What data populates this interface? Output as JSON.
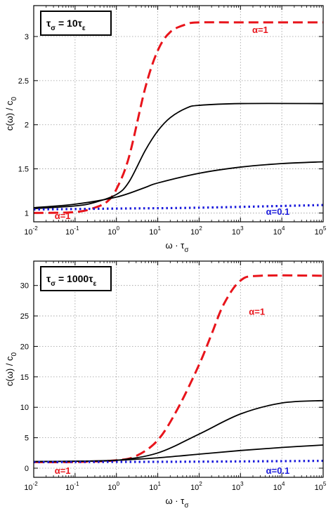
{
  "chart_data": [
    {
      "type": "line",
      "xscale": "log",
      "xlim": [
        0.01,
        100000
      ],
      "ylim": [
        0.9,
        3.35
      ],
      "x_ticks": [
        0.01,
        0.1,
        1,
        10,
        100,
        1000,
        10000,
        100000
      ],
      "x_tick_labels": [
        {
          "base": "10",
          "exp": "-2"
        },
        {
          "base": "10",
          "exp": "-1"
        },
        {
          "base": "10",
          "exp": "0"
        },
        {
          "base": "10",
          "exp": "1"
        },
        {
          "base": "10",
          "exp": "2"
        },
        {
          "base": "10",
          "exp": "3"
        },
        {
          "base": "10",
          "exp": "4"
        },
        {
          "base": "10",
          "exp": "5"
        }
      ],
      "y_ticks": [
        1,
        1.5,
        2,
        2.5,
        3
      ],
      "y_tick_labels": [
        "1",
        "1.5",
        "2",
        "2.5",
        "3"
      ],
      "xlabel": "ω · τσ",
      "ylabel": "c(ω) / c0",
      "grid": true,
      "box_label": {
        "prefix": "τ",
        "prefix_sub": "σ",
        "middle": " = 10τ",
        "suffix_sub": "ε"
      },
      "series": [
        {
          "style": "red-dashed",
          "color": "#e8141b",
          "x": [
            0.01,
            0.1,
            0.3,
            0.6,
            1,
            2,
            5,
            10,
            20,
            50,
            100,
            1000,
            100000
          ],
          "y": [
            1.0,
            1.01,
            1.06,
            1.13,
            1.27,
            1.63,
            2.42,
            2.84,
            3.05,
            3.14,
            3.16,
            3.16,
            3.16
          ]
        },
        {
          "style": "black",
          "color": "#000000",
          "x": [
            0.01,
            0.1,
            0.3,
            1,
            2,
            5,
            10,
            20,
            50,
            100,
            1000,
            100000
          ],
          "y": [
            1.05,
            1.08,
            1.12,
            1.21,
            1.35,
            1.71,
            1.93,
            2.08,
            2.19,
            2.22,
            2.24,
            2.24
          ]
        },
        {
          "style": "black",
          "color": "#000000",
          "x": [
            0.01,
            0.1,
            1,
            5,
            10,
            100,
            1000,
            10000,
            100000
          ],
          "y": [
            1.06,
            1.1,
            1.18,
            1.29,
            1.34,
            1.45,
            1.52,
            1.56,
            1.58
          ]
        },
        {
          "style": "blue-dotted",
          "color": "#1a1adc",
          "x": [
            0.01,
            1,
            100,
            100000
          ],
          "y": [
            1.04,
            1.05,
            1.06,
            1.09
          ]
        }
      ],
      "annotations": [
        {
          "text": "α=1",
          "color": "#e8141b",
          "x": 3000,
          "y": 3.04
        },
        {
          "text": "α=1",
          "color": "#e8141b",
          "x": 0.05,
          "y": 0.93
        },
        {
          "text": "α=0.1",
          "color": "#1a1adc",
          "x": 8000,
          "y": 0.98
        }
      ]
    },
    {
      "type": "line",
      "xscale": "log",
      "xlim": [
        0.01,
        100000
      ],
      "ylim": [
        -1.5,
        34
      ],
      "x_ticks": [
        0.01,
        0.1,
        1,
        10,
        100,
        1000,
        10000,
        100000
      ],
      "x_tick_labels": [
        {
          "base": "10",
          "exp": "-2"
        },
        {
          "base": "10",
          "exp": "-1"
        },
        {
          "base": "10",
          "exp": "0"
        },
        {
          "base": "10",
          "exp": "1"
        },
        {
          "base": "10",
          "exp": "2"
        },
        {
          "base": "10",
          "exp": "3"
        },
        {
          "base": "10",
          "exp": "4"
        },
        {
          "base": "10",
          "exp": "5"
        }
      ],
      "y_ticks": [
        0,
        5,
        10,
        15,
        20,
        25,
        30
      ],
      "y_tick_labels": [
        "0",
        "5",
        "10",
        "15",
        "20",
        "25",
        "30"
      ],
      "xlabel": "ω · τσ",
      "ylabel": "c(ω) / c0",
      "grid": true,
      "box_label": {
        "prefix": "τ",
        "prefix_sub": "σ",
        "middle": " = 1000τ",
        "suffix_sub": "ε"
      },
      "series": [
        {
          "style": "red-dashed",
          "color": "#e8141b",
          "x": [
            0.01,
            0.1,
            1,
            3,
            10,
            30,
            100,
            200,
            400,
            1000,
            3000,
            100000
          ],
          "y": [
            1.0,
            1.01,
            1.3,
            2.0,
            4.6,
            9.7,
            17.0,
            22.0,
            27.0,
            30.8,
            31.6,
            31.6
          ]
        },
        {
          "style": "black",
          "color": "#000000",
          "x": [
            0.01,
            0.1,
            1,
            10,
            100,
            1000,
            10000,
            100000
          ],
          "y": [
            1.1,
            1.15,
            1.3,
            2.5,
            5.6,
            8.9,
            10.7,
            11.1
          ]
        },
        {
          "style": "black",
          "color": "#000000",
          "x": [
            0.01,
            0.1,
            1,
            10,
            100,
            1000,
            10000,
            100000
          ],
          "y": [
            1.1,
            1.13,
            1.3,
            1.7,
            2.3,
            2.9,
            3.4,
            3.8
          ]
        },
        {
          "style": "blue-dotted",
          "color": "#1a1adc",
          "x": [
            0.01,
            1,
            100,
            100000
          ],
          "y": [
            1.0,
            1.03,
            1.07,
            1.2
          ]
        }
      ],
      "annotations": [
        {
          "text": "α=1",
          "color": "#e8141b",
          "x": 2500,
          "y": 25.2
        },
        {
          "text": "α=1",
          "color": "#e8141b",
          "x": 0.05,
          "y": -0.9
        },
        {
          "text": "α=0.1",
          "color": "#1a1adc",
          "x": 8000,
          "y": -0.9
        }
      ]
    }
  ]
}
